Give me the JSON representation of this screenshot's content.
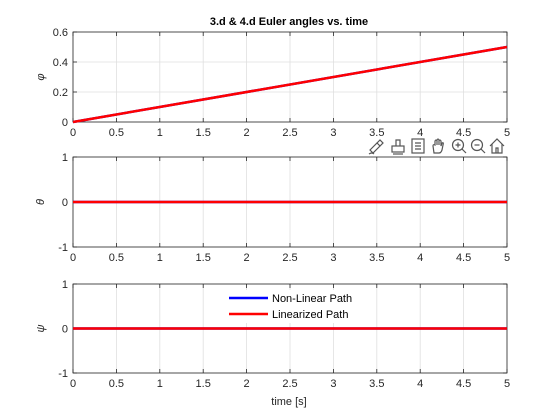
{
  "figure": {
    "title": "3.d & 4.d Euler angles vs. time",
    "xlabel": "time [s]"
  },
  "toolbar": {
    "icons": [
      "brush-icon",
      "data-tips-icon",
      "zoom-reset-icon",
      "pan-hand-icon",
      "zoom-in-icon",
      "zoom-out-icon",
      "home-icon"
    ]
  },
  "legend": {
    "entries": [
      "Non-Linear Path",
      "Linearized Path"
    ]
  },
  "chart_data": [
    {
      "type": "line",
      "title": "3.d & 4.d Euler angles vs. time",
      "xlabel": "",
      "ylabel": "φ",
      "xlim": [
        0,
        5
      ],
      "ylim": [
        0,
        0.6
      ],
      "xticks": [
        0,
        0.5,
        1,
        1.5,
        2,
        2.5,
        3,
        3.5,
        4,
        4.5,
        5
      ],
      "yticks": [
        0,
        0.2,
        0.4,
        0.6
      ],
      "grid": true,
      "series": [
        {
          "name": "Non-Linear Path",
          "color": "#0000ff",
          "x": [
            0,
            5
          ],
          "y": [
            0,
            0.5
          ]
        },
        {
          "name": "Linearized Path",
          "color": "#ff0000",
          "x": [
            0,
            5
          ],
          "y": [
            0,
            0.5
          ]
        }
      ]
    },
    {
      "type": "line",
      "xlabel": "",
      "ylabel": "θ",
      "xlim": [
        0,
        5
      ],
      "ylim": [
        -1,
        1
      ],
      "xticks": [
        0,
        0.5,
        1,
        1.5,
        2,
        2.5,
        3,
        3.5,
        4,
        4.5,
        5
      ],
      "yticks": [
        -1,
        0,
        1
      ],
      "grid": true,
      "series": [
        {
          "name": "Non-Linear Path",
          "color": "#0000ff",
          "x": [
            0,
            5
          ],
          "y": [
            0,
            0
          ]
        },
        {
          "name": "Linearized Path",
          "color": "#ff0000",
          "x": [
            0,
            5
          ],
          "y": [
            0,
            0
          ]
        }
      ]
    },
    {
      "type": "line",
      "xlabel": "time [s]",
      "ylabel": "ψ",
      "xlim": [
        0,
        5
      ],
      "ylim": [
        -1,
        1
      ],
      "xticks": [
        0,
        0.5,
        1,
        1.5,
        2,
        2.5,
        3,
        3.5,
        4,
        4.5,
        5
      ],
      "yticks": [
        -1,
        0,
        1
      ],
      "grid": true,
      "legend": "top-center",
      "series": [
        {
          "name": "Non-Linear Path",
          "color": "#0000ff",
          "x": [
            0,
            5
          ],
          "y": [
            0,
            0
          ]
        },
        {
          "name": "Linearized Path",
          "color": "#ff0000",
          "x": [
            0,
            5
          ],
          "y": [
            0,
            0
          ]
        }
      ]
    }
  ]
}
